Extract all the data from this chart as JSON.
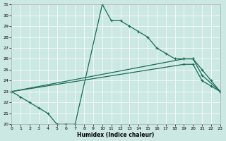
{
  "xlabel": "Humidex (Indice chaleur)",
  "bg_color": "#cce8e2",
  "line_color": "#1a6b5a",
  "xlim": [
    0,
    23
  ],
  "ylim": [
    20,
    31
  ],
  "xticks": [
    0,
    1,
    2,
    3,
    4,
    5,
    6,
    7,
    8,
    9,
    10,
    11,
    12,
    13,
    14,
    15,
    16,
    17,
    18,
    19,
    20,
    21,
    22,
    23
  ],
  "yticks": [
    20,
    21,
    22,
    23,
    24,
    25,
    26,
    27,
    28,
    29,
    30,
    31
  ],
  "line1_x": [
    0,
    1,
    2,
    3,
    4,
    5,
    6,
    7,
    10,
    11,
    12,
    13,
    14,
    15,
    16,
    17,
    18,
    19,
    20,
    21,
    23
  ],
  "line1_y": [
    23,
    22.5,
    22,
    21.5,
    21,
    20,
    20,
    20,
    31,
    29.5,
    29.5,
    29,
    28.5,
    28,
    27,
    26.5,
    26,
    26,
    26,
    24.5,
    23
  ],
  "line2_x": [
    0,
    19,
    20,
    21,
    22,
    23
  ],
  "line2_y": [
    23,
    26,
    26,
    25,
    24,
    23
  ],
  "line3_x": [
    0,
    19,
    20,
    21,
    22,
    23
  ],
  "line3_y": [
    23,
    25.5,
    25.5,
    24,
    23.5,
    23
  ]
}
